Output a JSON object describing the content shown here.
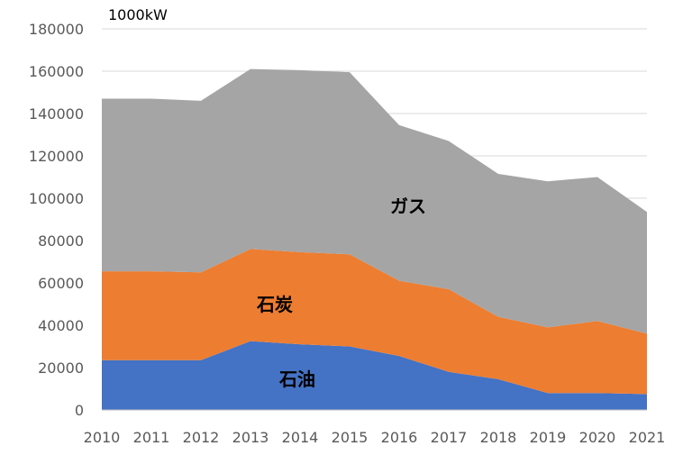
{
  "chart_data": {
    "type": "area",
    "stacked": true,
    "unit_label": "1000kW",
    "x": [
      "2010",
      "2011",
      "2012",
      "2013",
      "2014",
      "2015",
      "2016",
      "2017",
      "2018",
      "2019",
      "2020",
      "2021"
    ],
    "ylim": [
      0,
      180000
    ],
    "yticks": [
      0,
      20000,
      40000,
      60000,
      80000,
      100000,
      120000,
      140000,
      160000,
      180000
    ],
    "ytick_labels": [
      "0",
      "20000",
      "40000",
      "60000",
      "80000",
      "100000",
      "120000",
      "140000",
      "160000",
      "180000"
    ],
    "grid": true,
    "legend": "none",
    "series": [
      {
        "name": "石油",
        "color": "#4472c4",
        "values": [
          23500,
          23500,
          23500,
          32500,
          31000,
          30000,
          25500,
          18000,
          14500,
          8000,
          8000,
          7500
        ]
      },
      {
        "name": "石炭",
        "color": "#ed7d31",
        "values": [
          42000,
          42000,
          41500,
          43500,
          43500,
          43500,
          35500,
          39000,
          29500,
          31000,
          34000,
          28500
        ]
      },
      {
        "name": "ガス",
        "color": "#a5a5a5",
        "values": [
          81500,
          81500,
          81000,
          85000,
          86000,
          86000,
          73500,
          70000,
          67500,
          69000,
          68000,
          57500
        ]
      }
    ],
    "annotations": [
      {
        "series": "ガス",
        "text": "ガス"
      },
      {
        "series": "石炭",
        "text": "石炭"
      },
      {
        "series": "石油",
        "text": "石油"
      }
    ]
  }
}
